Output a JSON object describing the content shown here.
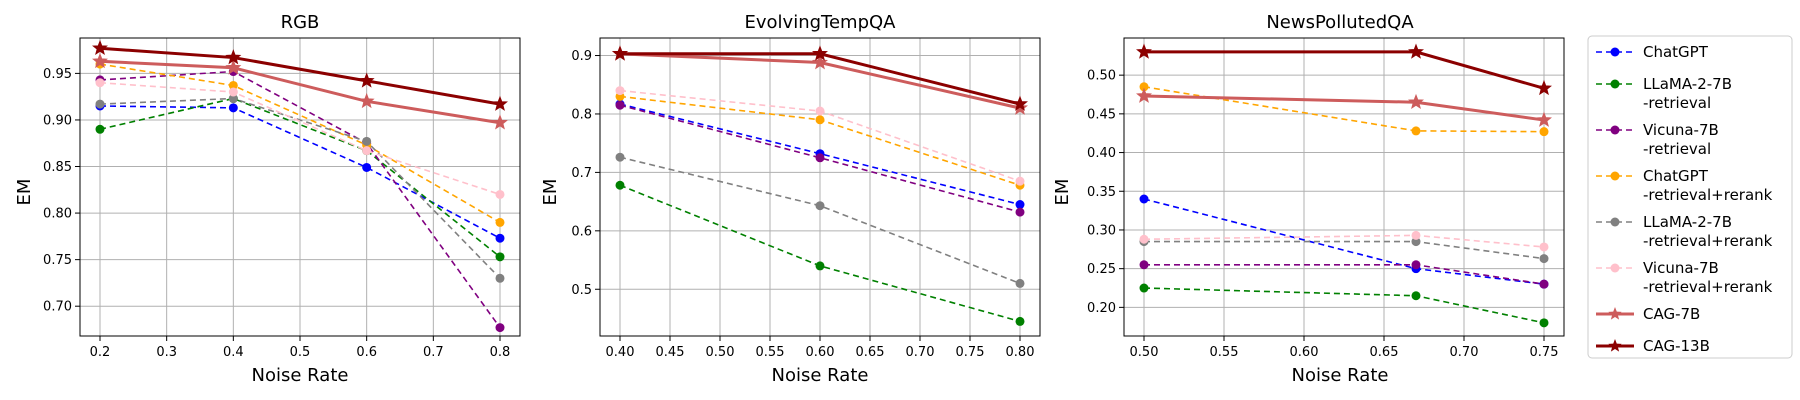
{
  "chart_data": [
    {
      "type": "line",
      "title": "RGB",
      "xlabel": "Noise Rate",
      "ylabel": "EM",
      "x": [
        0.2,
        0.4,
        0.6,
        0.8
      ],
      "xlim": [
        0.17,
        0.83
      ],
      "ylim": [
        0.668,
        0.988
      ],
      "xticks": [
        0.2,
        0.3,
        0.4,
        0.5,
        0.6,
        0.7,
        0.8
      ],
      "xtick_labels": [
        "0.2",
        "0.3",
        "0.4",
        "0.5",
        "0.6",
        "0.7",
        "0.8"
      ],
      "yticks": [
        0.7,
        0.75,
        0.8,
        0.85,
        0.9,
        0.95
      ],
      "ytick_labels": [
        "0.70",
        "0.75",
        "0.80",
        "0.85",
        "0.90",
        "0.95"
      ],
      "grid": true,
      "series": [
        {
          "name": "ChatGPT",
          "values": [
            0.915,
            0.913,
            0.849,
            0.773
          ]
        },
        {
          "name": "LLaMA-2-7B -retrieval",
          "values": [
            0.89,
            0.923,
            0.867,
            0.753
          ]
        },
        {
          "name": "Vicuna-7B -retrieval",
          "values": [
            0.943,
            0.952,
            0.875,
            0.677
          ]
        },
        {
          "name": "ChatGPT -retrieval+rerank",
          "values": [
            0.96,
            0.937,
            0.873,
            0.79
          ]
        },
        {
          "name": "LLaMA-2-7B -retrieval+rerank",
          "values": [
            0.917,
            0.923,
            0.877,
            0.73
          ]
        },
        {
          "name": "Vicuna-7B -retrieval+rerank",
          "values": [
            0.94,
            0.93,
            0.867,
            0.82
          ]
        },
        {
          "name": "CAG-7B",
          "values": [
            0.963,
            0.956,
            0.92,
            0.897
          ]
        },
        {
          "name": "CAG-13B",
          "values": [
            0.977,
            0.967,
            0.942,
            0.917
          ]
        }
      ]
    },
    {
      "type": "line",
      "title": "EvolvingTempQA",
      "xlabel": "Noise Rate",
      "ylabel": "EM",
      "x": [
        0.4,
        0.6,
        0.8
      ],
      "xlim": [
        0.38,
        0.82
      ],
      "ylim": [
        0.42,
        0.93
      ],
      "xticks": [
        0.4,
        0.45,
        0.5,
        0.55,
        0.6,
        0.65,
        0.7,
        0.75,
        0.8
      ],
      "xtick_labels": [
        "0.40",
        "0.45",
        "0.50",
        "0.55",
        "0.60",
        "0.65",
        "0.70",
        "0.75",
        "0.80"
      ],
      "yticks": [
        0.5,
        0.6,
        0.7,
        0.8,
        0.9
      ],
      "ytick_labels": [
        "0.5",
        "0.6",
        "0.7",
        "0.8",
        "0.9"
      ],
      "grid": true,
      "series": [
        {
          "name": "ChatGPT",
          "values": [
            0.817,
            0.732,
            0.645
          ]
        },
        {
          "name": "LLaMA-2-7B -retrieval",
          "values": [
            0.678,
            0.54,
            0.445
          ]
        },
        {
          "name": "Vicuna-7B -retrieval",
          "values": [
            0.815,
            0.725,
            0.632
          ]
        },
        {
          "name": "ChatGPT -retrieval+rerank",
          "values": [
            0.83,
            0.79,
            0.678
          ]
        },
        {
          "name": "LLaMA-2-7B -retrieval+rerank",
          "values": [
            0.726,
            0.643,
            0.51
          ]
        },
        {
          "name": "Vicuna-7B -retrieval+rerank",
          "values": [
            0.84,
            0.805,
            0.685
          ]
        },
        {
          "name": "CAG-7B",
          "values": [
            0.903,
            0.888,
            0.81
          ]
        },
        {
          "name": "CAG-13B",
          "values": [
            0.903,
            0.903,
            0.817
          ]
        }
      ]
    },
    {
      "type": "line",
      "title": "NewsPollutedQA",
      "xlabel": "Noise Rate",
      "ylabel": "EM",
      "x": [
        0.5,
        0.67,
        0.75
      ],
      "xlim": [
        0.4875,
        0.7625
      ],
      "ylim": [
        0.163,
        0.548
      ],
      "xticks": [
        0.5,
        0.55,
        0.6,
        0.65,
        0.7,
        0.75
      ],
      "xtick_labels": [
        "0.50",
        "0.55",
        "0.60",
        "0.65",
        "0.70",
        "0.75"
      ],
      "yticks": [
        0.2,
        0.25,
        0.3,
        0.35,
        0.4,
        0.45,
        0.5
      ],
      "ytick_labels": [
        "0.20",
        "0.25",
        "0.30",
        "0.35",
        "0.40",
        "0.45",
        "0.50"
      ],
      "grid": true,
      "series": [
        {
          "name": "ChatGPT",
          "values": [
            0.34,
            0.25,
            0.23
          ]
        },
        {
          "name": "LLaMA-2-7B -retrieval",
          "values": [
            0.225,
            0.215,
            0.18
          ]
        },
        {
          "name": "Vicuna-7B -retrieval",
          "values": [
            0.255,
            0.255,
            0.23
          ]
        },
        {
          "name": "ChatGPT -retrieval+rerank",
          "values": [
            0.485,
            0.428,
            0.427
          ]
        },
        {
          "name": "LLaMA-2-7B -retrieval+rerank",
          "values": [
            0.285,
            0.285,
            0.263
          ]
        },
        {
          "name": "Vicuna-7B -retrieval+rerank",
          "values": [
            0.288,
            0.293,
            0.278
          ]
        },
        {
          "name": "CAG-7B",
          "values": [
            0.473,
            0.465,
            0.442
          ]
        },
        {
          "name": "CAG-13B",
          "values": [
            0.53,
            0.53,
            0.483
          ]
        }
      ]
    }
  ],
  "legend": {
    "placement": "right",
    "entries": [
      {
        "lines": [
          "ChatGPT"
        ],
        "color": "#0000ff",
        "dash": "dashed",
        "marker": "circle"
      },
      {
        "lines": [
          "LLaMA-2-7B",
          "-retrieval"
        ],
        "color": "#008000",
        "dash": "dashed",
        "marker": "circle"
      },
      {
        "lines": [
          "Vicuna-7B",
          "-retrieval"
        ],
        "color": "#800080",
        "dash": "dashed",
        "marker": "circle"
      },
      {
        "lines": [
          "ChatGPT",
          "-retrieval+rerank"
        ],
        "color": "#ffa500",
        "dash": "dashed",
        "marker": "circle"
      },
      {
        "lines": [
          "LLaMA-2-7B",
          "-retrieval+rerank"
        ],
        "color": "#808080",
        "dash": "dashed",
        "marker": "circle"
      },
      {
        "lines": [
          "Vicuna-7B",
          "-retrieval+rerank"
        ],
        "color": "#ffc0cb",
        "dash": "dashed",
        "marker": "circle"
      },
      {
        "lines": [
          "CAG-7B"
        ],
        "color": "#cd5c5c",
        "dash": "solid",
        "marker": "star"
      },
      {
        "lines": [
          "CAG-13B"
        ],
        "color": "#8b0000",
        "dash": "solid",
        "marker": "star"
      }
    ]
  }
}
